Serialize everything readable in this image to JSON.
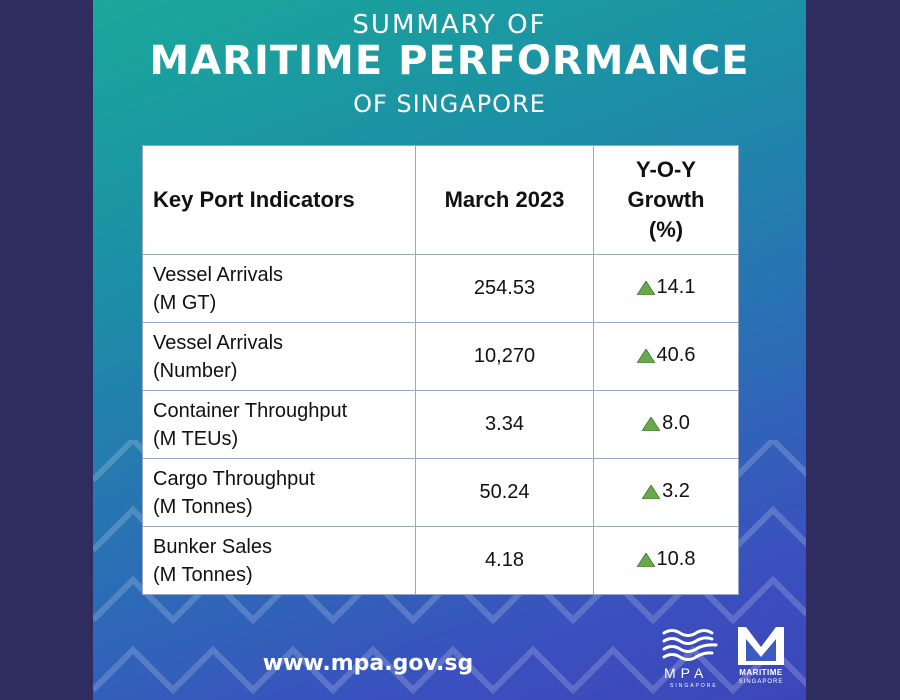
{
  "header": {
    "line1": "SUMMARY OF",
    "line2": "MARITIME PERFORMANCE",
    "line3": "OF SINGAPORE"
  },
  "table": {
    "headers": {
      "indicator": "Key Port Indicators",
      "month": "March 2023",
      "growth_line1": "Y-O-Y",
      "growth_line2": "Growth",
      "growth_line3": "(%)"
    },
    "rows": [
      {
        "name": "Vessel Arrivals",
        "unit": "(M GT)",
        "value": "254.53",
        "growth": "14.1"
      },
      {
        "name": "Vessel Arrivals",
        "unit": "(Number)",
        "value": "10,270",
        "growth": "40.6"
      },
      {
        "name": "Container Throughput",
        "unit": "(M TEUs)",
        "value": "3.34",
        "growth": "8.0"
      },
      {
        "name": "Cargo Throughput",
        "unit": "(M Tonnes)",
        "value": "50.24",
        "growth": "3.2"
      },
      {
        "name": "Bunker Sales",
        "unit": "(M Tonnes)",
        "value": "4.18",
        "growth": "10.8"
      }
    ],
    "growth_indicator_icon": "up-triangle-icon",
    "growth_indicator_color": "#6aa84f"
  },
  "footer": {
    "url": "www.mpa.gov.sg",
    "mpa_logo_text": "MPA",
    "mpa_logo_sub": "SINGAPORE",
    "ms_logo_text": "MARITIME",
    "ms_logo_sub": "SINGAPORE"
  },
  "colors": {
    "side_panel": "#2f2d60",
    "gradient_top": "#1aa89a",
    "gradient_bottom": "#3d46b8"
  }
}
